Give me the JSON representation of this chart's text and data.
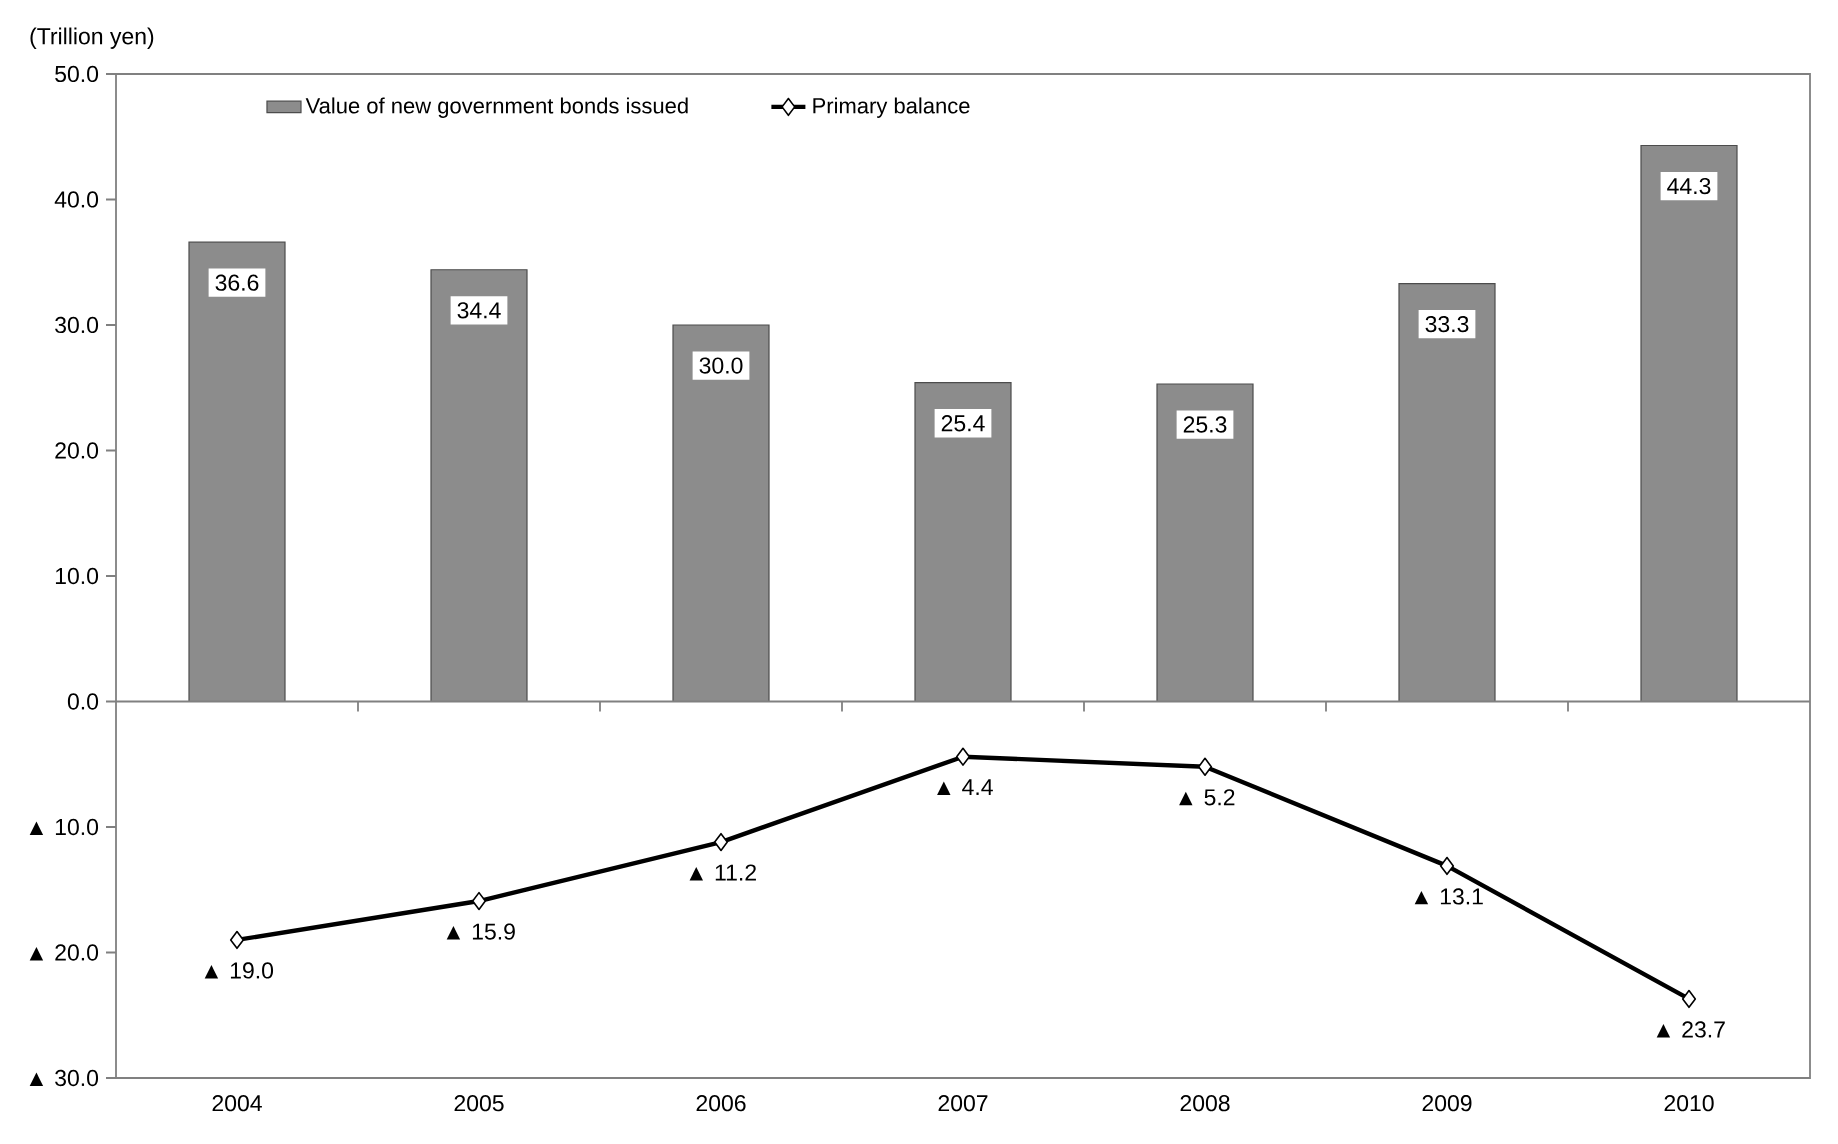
{
  "chart_data": {
    "type": "bar",
    "ylabel": "(Trillion yen)",
    "categories": [
      "2004",
      "2005",
      "2006",
      "2007",
      "2008",
      "2009",
      "2010"
    ],
    "series": [
      {
        "name": "Value of new government bonds issued",
        "color": "#8c8c8c",
        "values": [
          36.6,
          34.4,
          30.0,
          25.4,
          25.3,
          33.3,
          44.3
        ],
        "value_labels": [
          "36.6",
          "34.4",
          "30.0",
          "25.4",
          "25.3",
          "33.3",
          "44.3"
        ]
      },
      {
        "name": "Primary balance",
        "type": "line",
        "color": "#000000",
        "marker": "diamond",
        "values": [
          -19.0,
          -15.9,
          -11.2,
          -4.4,
          -5.2,
          -13.1,
          -23.7
        ]
      }
    ],
    "annotations": [
      {
        "text": "▲ 19.0",
        "x": "2004",
        "y": -19.0
      },
      {
        "text": "▲ 15.9",
        "x": "2005",
        "y": -15.9
      },
      {
        "text": "▲ 11.2",
        "x": "2006",
        "y": -11.2
      },
      {
        "text": "▲ 4.4",
        "x": "2007",
        "y": -4.4
      },
      {
        "text": "▲ 5.2",
        "x": "2008",
        "y": -5.2
      },
      {
        "text": "▲ 13.1",
        "x": "2009",
        "y": -13.1
      },
      {
        "text": "▲ 23.7",
        "x": "2010",
        "y": -23.7
      }
    ],
    "ylim": [
      -30,
      50
    ],
    "yticks": [
      {
        "value": -30,
        "label": "▲ 30.0"
      },
      {
        "value": -20,
        "label": "▲ 20.0"
      },
      {
        "value": -10,
        "label": "▲ 10.0"
      },
      {
        "value": 0,
        "label": "0.0"
      },
      {
        "value": 10,
        "label": "10.0"
      },
      {
        "value": 20,
        "label": "20.0"
      },
      {
        "value": 30,
        "label": "30.0"
      },
      {
        "value": 40,
        "label": "40.0"
      },
      {
        "value": 50,
        "label": "50.0"
      }
    ],
    "legend": "top left"
  }
}
